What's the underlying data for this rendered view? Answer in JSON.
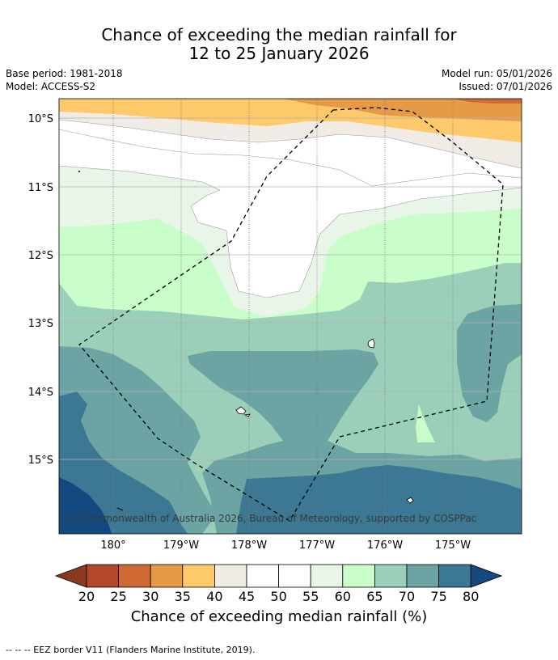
{
  "header": {
    "title_line1": "Chance of exceeding the median rainfall for",
    "title_line2": "12 to 25 January 2026",
    "base_period": "Base period: 1981-2018",
    "model": "Model: ACCESS-S2",
    "model_run": "Model run: 05/01/2026",
    "issued": "Issued: 07/01/2026"
  },
  "map": {
    "lat_labels": [
      "10°S",
      "11°S",
      "12°S",
      "13°S",
      "14°S",
      "15°S"
    ],
    "lon_labels": [
      "180°",
      "179°W",
      "178°W",
      "177°W",
      "176°W",
      "175°W"
    ],
    "copyright": "© Commonwealth of Australia 2026, Bureau of Meteorology, supported by COSPPac",
    "eez_label": "EEZ border"
  },
  "colorbar": {
    "ticks": [
      "20",
      "25",
      "30",
      "35",
      "40",
      "45",
      "50",
      "55",
      "60",
      "65",
      "70",
      "75",
      "80"
    ],
    "colors": [
      "#8b3a1f",
      "#b4472a",
      "#d06a35",
      "#e59a48",
      "#fdc96a",
      "#f1ebe5",
      "#ffffff",
      "#ffffff",
      "#e9f5e8",
      "#c9fdc9",
      "#9bcfb9",
      "#6ca4a4",
      "#3c7794",
      "#13497e"
    ],
    "label": "Chance of exceeding median rainfall (%)"
  },
  "footer": {
    "note": "--  --  -- EEZ border V11 (Flanders Marine Institute, 2019)."
  }
}
